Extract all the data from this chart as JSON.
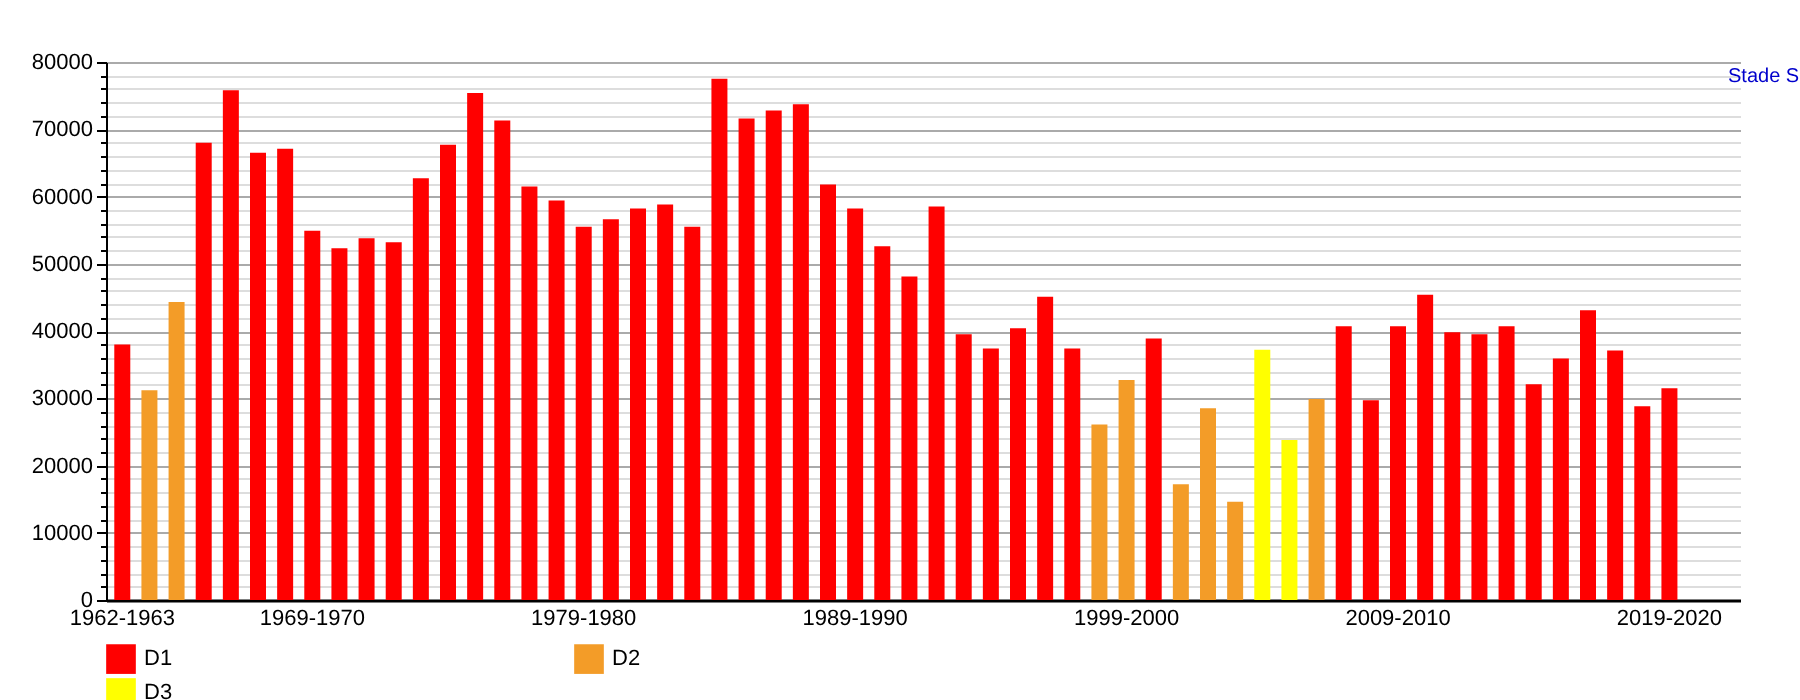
{
  "chart_data": {
    "type": "bar",
    "categories": [
      "1962-1963",
      null,
      null,
      null,
      null,
      null,
      null,
      "1969-1970",
      null,
      null,
      null,
      null,
      null,
      null,
      null,
      null,
      null,
      "1979-1980",
      null,
      null,
      null,
      null,
      null,
      null,
      null,
      null,
      null,
      "1989-1990",
      null,
      null,
      null,
      null,
      null,
      null,
      null,
      null,
      null,
      "1999-2000",
      null,
      null,
      null,
      null,
      null,
      null,
      null,
      null,
      null,
      "2009-2010",
      null,
      null,
      null,
      null,
      null,
      null,
      null,
      null,
      null,
      "2019-2020",
      null,
      null
    ],
    "series": [
      {
        "name": "D1",
        "color": "#ff0000",
        "values": [
          38000,
          null,
          null,
          68000,
          75800,
          66500,
          67100,
          54900,
          52300,
          53800,
          53200,
          62700,
          67700,
          75400,
          71300,
          61500,
          59400,
          55500,
          56600,
          58200,
          58800,
          55500,
          77500,
          71600,
          72800,
          73700,
          61800,
          58200,
          52600,
          48100,
          58500,
          39500,
          37400,
          40400,
          45100,
          37400,
          null,
          null,
          38900,
          null,
          null,
          null,
          null,
          null,
          null,
          40700,
          29700,
          40700,
          45400,
          39800,
          39500,
          40700,
          32100,
          35900,
          43100,
          37100,
          28800,
          31500,
          null,
          null
        ]
      },
      {
        "name": "D2",
        "color": "#f39c28",
        "values": [
          null,
          31200,
          44300,
          null,
          null,
          null,
          null,
          null,
          null,
          null,
          null,
          null,
          null,
          null,
          null,
          null,
          null,
          null,
          null,
          null,
          null,
          null,
          null,
          null,
          null,
          null,
          null,
          null,
          null,
          null,
          null,
          null,
          null,
          null,
          null,
          null,
          26100,
          32700,
          null,
          17200,
          28500,
          14600,
          null,
          null,
          29900,
          null,
          null,
          null,
          null,
          null,
          null,
          null,
          null,
          null,
          null,
          null,
          null,
          null,
          null,
          null
        ]
      },
      {
        "name": "D3",
        "color": "#ffff00",
        "values": [
          null,
          null,
          null,
          null,
          null,
          null,
          null,
          null,
          null,
          null,
          null,
          null,
          null,
          null,
          null,
          null,
          null,
          null,
          null,
          null,
          null,
          null,
          null,
          null,
          null,
          null,
          null,
          null,
          null,
          null,
          null,
          null,
          null,
          null,
          null,
          null,
          null,
          null,
          null,
          null,
          null,
          null,
          37200,
          23800,
          null,
          null,
          null,
          null,
          null,
          null,
          null,
          null,
          null,
          null,
          null,
          null,
          null,
          null,
          null,
          null
        ]
      }
    ],
    "ylim": [
      0,
      80000
    ],
    "yticks": [
      0,
      {
        "value": 2000,
        "label": null
      },
      {
        "value": 4000,
        "label": null
      },
      {
        "value": 6000,
        "label": null
      },
      {
        "value": 8000,
        "label": null
      },
      10000,
      {
        "value": 12000,
        "label": null
      },
      {
        "value": 14000,
        "label": null
      },
      {
        "value": 16000,
        "label": null
      },
      {
        "value": 18000,
        "label": null
      },
      20000,
      {
        "value": 22000,
        "label": null
      },
      {
        "value": 24000,
        "label": null
      },
      {
        "value": 26000,
        "label": null
      },
      {
        "value": 28000,
        "label": null
      },
      30000,
      {
        "value": 32000,
        "label": null
      },
      {
        "value": 34000,
        "label": null
      },
      {
        "value": 36000,
        "label": null
      },
      {
        "value": 38000,
        "label": null
      },
      40000,
      {
        "value": 42000,
        "label": null
      },
      {
        "value": 44000,
        "label": null
      },
      {
        "value": 46000,
        "label": null
      },
      {
        "value": 48000,
        "label": null
      },
      50000,
      {
        "value": 52000,
        "label": null
      },
      {
        "value": 54000,
        "label": null
      },
      {
        "value": 56000,
        "label": null
      },
      {
        "value": 58000,
        "label": null
      },
      60000,
      {
        "value": 62000,
        "label": null
      },
      {
        "value": 64000,
        "label": null
      },
      {
        "value": 66000,
        "label": null
      },
      {
        "value": 68000,
        "label": null
      },
      70000,
      {
        "value": 72000,
        "label": null
      },
      {
        "value": 74000,
        "label": null
      },
      {
        "value": 76000,
        "label": null
      },
      {
        "value": 78000,
        "label": null
      },
      80000
    ],
    "grid": "y",
    "legend": "bottom left",
    "annotations": [
      "Stade S"
    ]
  }
}
